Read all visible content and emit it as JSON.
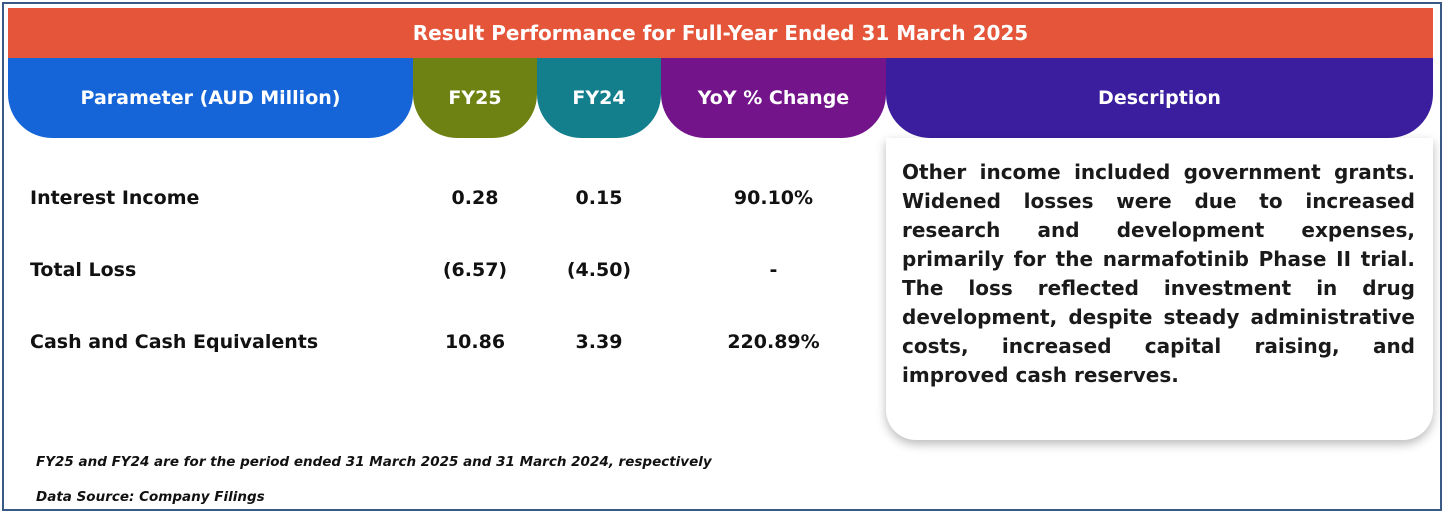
{
  "title": "Result Performance for Full-Year Ended 31 March 2025",
  "headers": {
    "parameter": "Parameter (AUD Million)",
    "fy25": "FY25",
    "fy24": "FY24",
    "yoy": "YoY % Change",
    "description": "Description"
  },
  "colors": {
    "banner": "#e5553a",
    "parameter": "#1565d8",
    "fy25": "#6e8213",
    "fy24": "#147f8c",
    "yoy": "#73148a",
    "description": "#3a1e9e"
  },
  "rows": [
    {
      "parameter": "Interest Income",
      "fy25": "0.28",
      "fy24": "0.15",
      "yoy": "90.10%"
    },
    {
      "parameter": "Total Loss",
      "fy25": "(6.57)",
      "fy24": "(4.50)",
      "yoy": "-"
    },
    {
      "parameter": "Cash and Cash Equivalents",
      "fy25": "10.86",
      "fy24": "3.39",
      "yoy": "220.89%"
    }
  ],
  "description": "Other income included government grants. Widened losses were due to increased research and development expenses, primarily for the narmafotinib Phase II trial. The loss reflected investment in drug development, despite steady administrative costs, increased capital raising, and improved cash reserves.",
  "footnotes": {
    "period": "FY25 and FY24 are for the period ended 31 March 2025 and 31 March 2024, respectively",
    "source": "Data Source: Company Filings"
  }
}
